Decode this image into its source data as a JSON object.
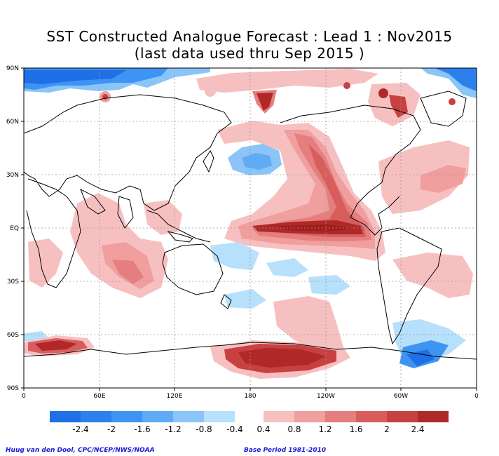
{
  "title_line1": "SST Constructed Analogue Forecast : Lead 1 : Nov2015",
  "title_line2": "(last data used thru Sep 2015 )",
  "lat_labels": [
    "90N",
    "60N",
    "30N",
    "EQ",
    "30S",
    "60S",
    "90S"
  ],
  "lon_labels": [
    "0",
    "60E",
    "120E",
    "180",
    "120W",
    "60W",
    "0"
  ],
  "colorbar": {
    "tick_labels": [
      "-2.4",
      "-2",
      "-1.6",
      "-1.2",
      "-0.8",
      "-0.4",
      "0.4",
      "0.8",
      "1.2",
      "1.6",
      "2",
      "2.4"
    ],
    "negative_colors": [
      "#1f6fe6",
      "#2c80ee",
      "#3e94f2",
      "#5fabf5",
      "#8ac4f8",
      "#b6e0fb"
    ],
    "positive_colors": [
      "#f7c0c0",
      "#f09e9e",
      "#e57e7e",
      "#d85e5e",
      "#c84040",
      "#b02828"
    ]
  },
  "credit_left": "Huug van den Dool, CPC/NCEP/NWS/NOAA",
  "credit_right": "Base Period 1981-2010"
}
